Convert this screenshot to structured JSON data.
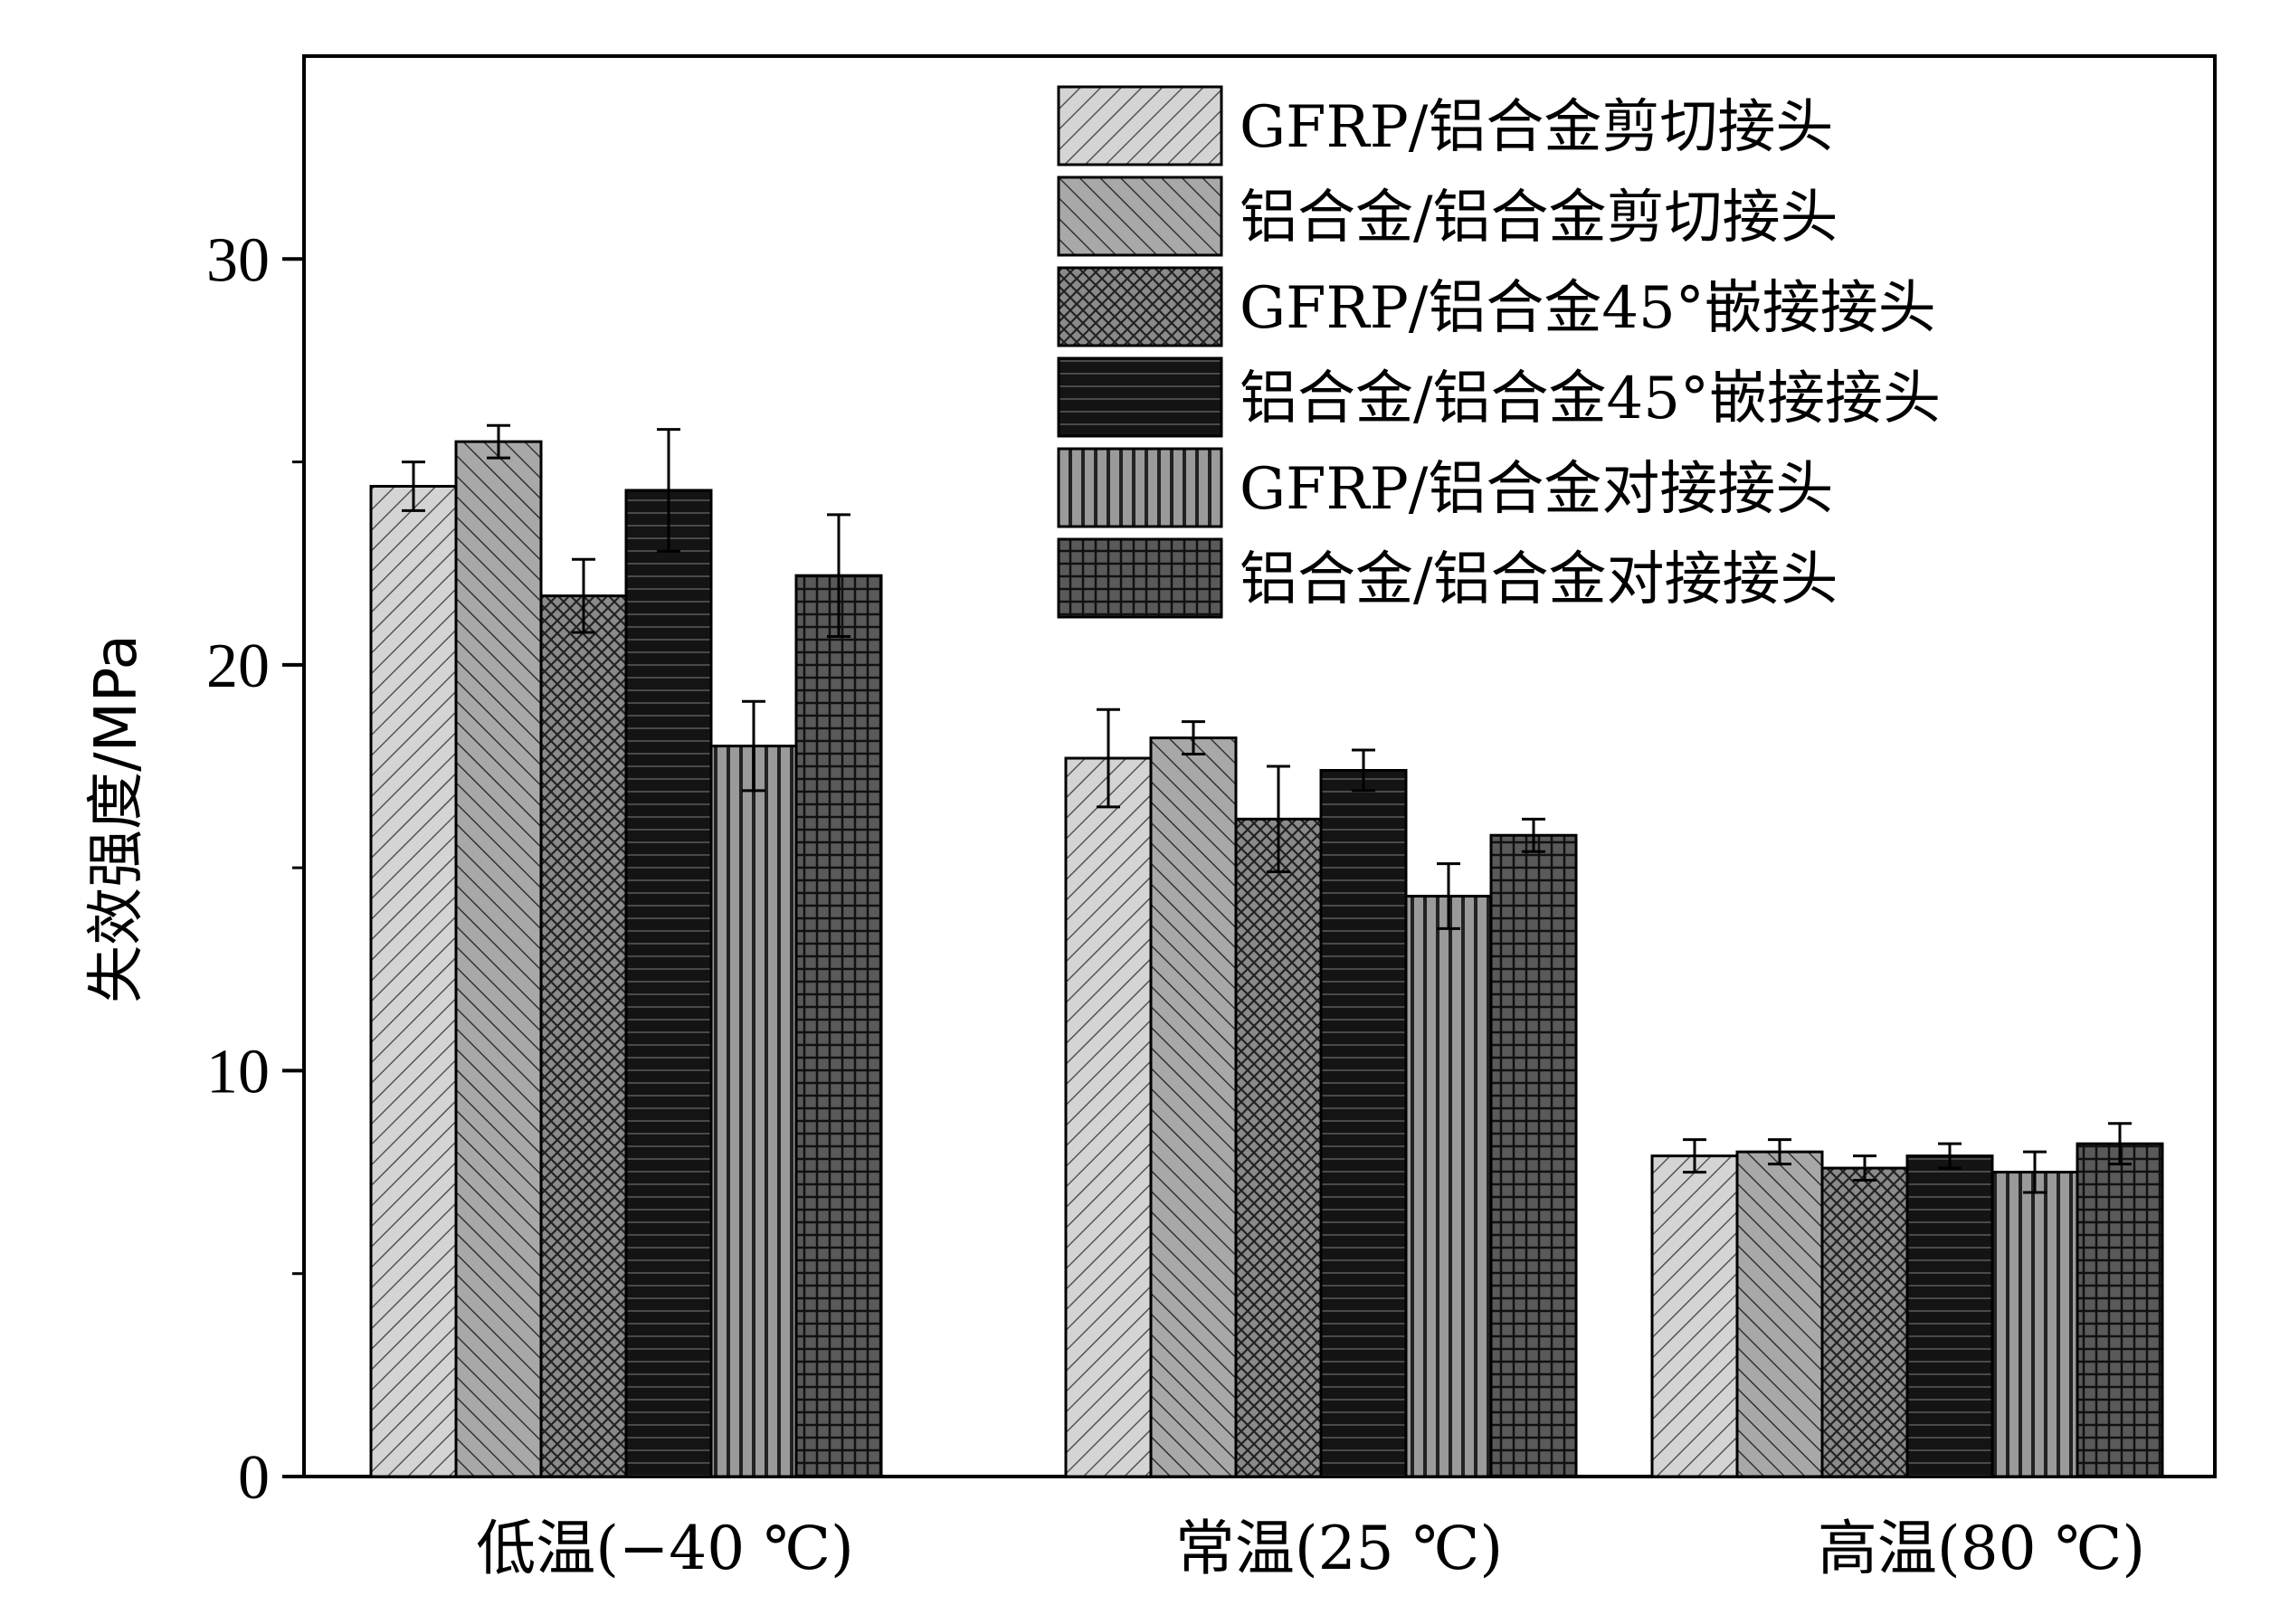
{
  "chart_data": {
    "type": "bar",
    "title": "",
    "xlabel": "",
    "ylabel": "失效强度/MPa",
    "ylim": [
      0,
      35
    ],
    "y_ticks": [
      0,
      10,
      20,
      30
    ],
    "grid": false,
    "legend_position": "top-right",
    "categories": [
      "低温(−40 ℃)",
      "常温(25 ℃)",
      "高温(80 ℃)"
    ],
    "series": [
      {
        "name": "GFRP/铝合金剪切接头",
        "values": [
          24.4,
          17.7,
          7.9
        ],
        "errors": [
          0.6,
          1.2,
          0.4
        ],
        "color": "#d0d0d0",
        "pattern": "diag-right"
      },
      {
        "name": "铝合金/铝合金剪切接头",
        "values": [
          25.5,
          18.2,
          8.0
        ],
        "errors": [
          0.4,
          0.4,
          0.3
        ],
        "color": "#aaaaaa",
        "pattern": "diag-left"
      },
      {
        "name": "GFRP/铝合金45°嵌接接头",
        "values": [
          21.7,
          16.2,
          7.6
        ],
        "errors": [
          0.9,
          1.3,
          0.3
        ],
        "color": "#777777",
        "pattern": "crosshatch"
      },
      {
        "name": "铝合金/铝合金45°嵌接接头",
        "values": [
          24.3,
          17.4,
          7.9
        ],
        "errors": [
          1.5,
          0.5,
          0.3
        ],
        "color": "#1a1a1a",
        "pattern": "horizontal"
      },
      {
        "name": "GFRP/铝合金对接接头",
        "values": [
          18.0,
          14.3,
          7.5
        ],
        "errors": [
          1.1,
          0.8,
          0.5
        ],
        "color": "#888888",
        "pattern": "vertical"
      },
      {
        "name": "铝合金/铝合金对接接头",
        "values": [
          22.2,
          15.8,
          8.2
        ],
        "errors": [
          1.5,
          0.4,
          0.5
        ],
        "color": "#444444",
        "pattern": "grid"
      }
    ]
  }
}
